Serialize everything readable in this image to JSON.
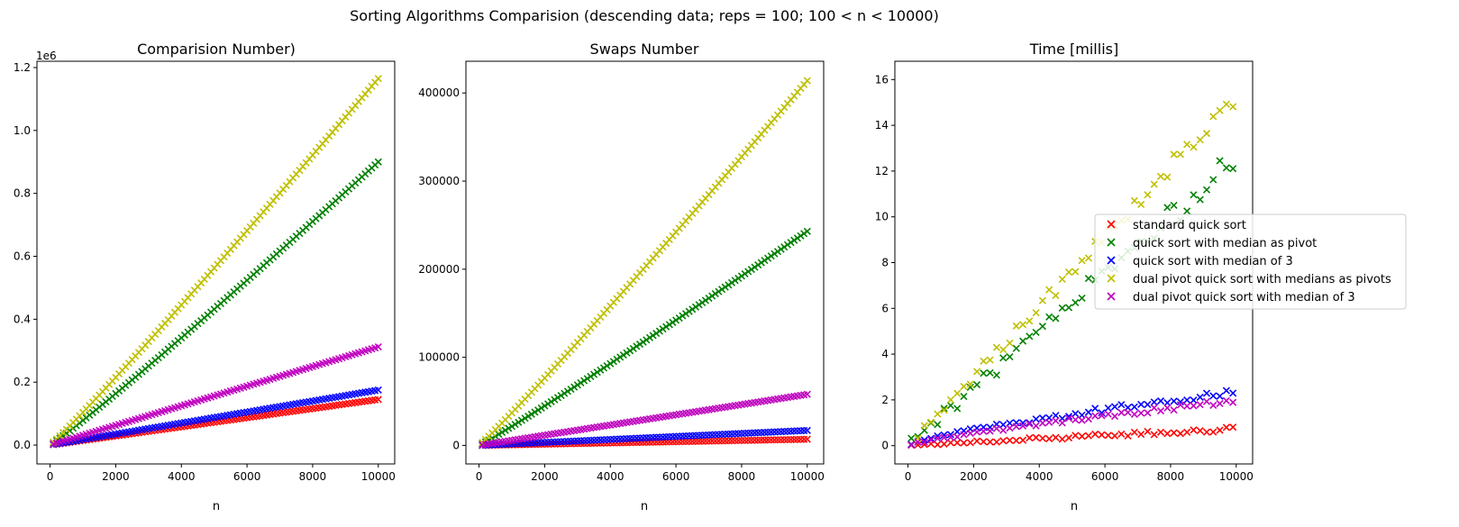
{
  "figure": {
    "suptitle": "Sorting Algorithms Comparision (descending data; reps = 100; 100 < n < 10000)",
    "legend": {
      "placement": "right of third panel, center",
      "entries": [
        {
          "label": "standard quick sort",
          "color": "#ff0000"
        },
        {
          "label": "quick sort with median as pivot",
          "color": "#008000"
        },
        {
          "label": "quick sort with median of 3",
          "color": "#0000ff"
        },
        {
          "label": "dual pivot quick sort with medians as pivots",
          "color": "#bfbf00"
        },
        {
          "label": "dual pivot quick sort with median of 3",
          "color": "#bf00bf"
        }
      ]
    }
  },
  "chart_data": [
    {
      "type": "scatter",
      "title": "Comparision Number)",
      "xlabel": "n",
      "ylabel": "",
      "offset_text": "1e6",
      "xlim": [
        -400,
        10500
      ],
      "ylim": [
        -0.06,
        1.22
      ],
      "xticks": [
        0,
        2000,
        4000,
        6000,
        8000,
        10000
      ],
      "xtick_labels": [
        "0",
        "2000",
        "4000",
        "6000",
        "8000",
        "10000"
      ],
      "yticks": [
        0,
        0.2,
        0.4,
        0.6,
        0.8,
        1.0,
        1.2
      ],
      "ytick_labels": [
        "0.0",
        "0.2",
        "0.4",
        "0.6",
        "0.8",
        "1.0",
        "1.2"
      ],
      "grid": false,
      "marker": "x",
      "n_range": [
        100,
        10000,
        100
      ],
      "series": [
        {
          "name": "standard quick sort",
          "color": "#ff0000",
          "end_value": 0.145,
          "exponent": 1.0
        },
        {
          "name": "quick sort with median as pivot",
          "color": "#008000",
          "end_value": 0.9,
          "exponent": 1.06
        },
        {
          "name": "quick sort with median of 3",
          "color": "#0000ff",
          "end_value": 0.175,
          "exponent": 1.0
        },
        {
          "name": "dual pivot quick sort with medians as pivots",
          "color": "#bfbf00",
          "end_value": 1.165,
          "exponent": 1.05
        },
        {
          "name": "dual pivot quick sort with median of 3",
          "color": "#bf00bf",
          "end_value": 0.312,
          "exponent": 1.0
        }
      ]
    },
    {
      "type": "scatter",
      "title": "Swaps Number",
      "xlabel": "n",
      "ylabel": "",
      "xlim": [
        -400,
        10500
      ],
      "ylim": [
        -21000,
        436000
      ],
      "xticks": [
        0,
        2000,
        4000,
        6000,
        8000,
        10000
      ],
      "xtick_labels": [
        "0",
        "2000",
        "4000",
        "6000",
        "8000",
        "10000"
      ],
      "yticks": [
        0,
        100000,
        200000,
        300000,
        400000
      ],
      "ytick_labels": [
        "0",
        "100000",
        "200000",
        "300000",
        "400000"
      ],
      "grid": false,
      "marker": "x",
      "n_range": [
        100,
        10000,
        100
      ],
      "series": [
        {
          "name": "standard quick sort",
          "color": "#ff0000",
          "end_value": 7000,
          "exponent": 1.0
        },
        {
          "name": "quick sort with median as pivot",
          "color": "#008000",
          "end_value": 243000,
          "exponent": 1.05
        },
        {
          "name": "quick sort with median of 3",
          "color": "#0000ff",
          "end_value": 17000,
          "exponent": 1.0
        },
        {
          "name": "dual pivot quick sort with medians as pivots",
          "color": "#bfbf00",
          "end_value": 414000,
          "exponent": 1.05
        },
        {
          "name": "dual pivot quick sort with median of 3",
          "color": "#bf00bf",
          "end_value": 58000,
          "exponent": 1.0
        }
      ]
    },
    {
      "type": "scatter",
      "title": "Time [millis]",
      "xlabel": "n",
      "ylabel": "",
      "xlim": [
        -400,
        10500
      ],
      "ylim": [
        -0.8,
        16.8
      ],
      "xticks": [
        0,
        2000,
        4000,
        6000,
        8000,
        10000
      ],
      "xtick_labels": [
        "0",
        "2000",
        "4000",
        "6000",
        "8000",
        "10000"
      ],
      "yticks": [
        0,
        2,
        4,
        6,
        8,
        10,
        12,
        14,
        16
      ],
      "ytick_labels": [
        "0",
        "2",
        "4",
        "6",
        "8",
        "10",
        "12",
        "14",
        "16"
      ],
      "grid": false,
      "marker": "x",
      "n_range": [
        100,
        10000,
        200
      ],
      "series": [
        {
          "name": "standard quick sort",
          "color": "#ff0000",
          "end_value": 0.75,
          "exponent": 1.0,
          "noise": 0.08
        },
        {
          "name": "quick sort with median as pivot",
          "color": "#008000",
          "end_value": 12.6,
          "exponent": 1.0,
          "noise": 0.5
        },
        {
          "name": "quick sort with median of 3",
          "color": "#0000ff",
          "end_value": 2.3,
          "exponent": 0.75,
          "noise": 0.12
        },
        {
          "name": "dual pivot quick sort with medians as pivots",
          "color": "#bfbf00",
          "end_value": 15.2,
          "exponent": 1.0,
          "noise": 0.35
        },
        {
          "name": "dual pivot quick sort with median of 3",
          "color": "#bf00bf",
          "end_value": 1.95,
          "exponent": 0.8,
          "noise": 0.1
        }
      ]
    }
  ]
}
